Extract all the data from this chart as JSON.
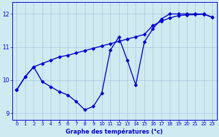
{
  "hours": [
    0,
    1,
    2,
    3,
    4,
    5,
    6,
    7,
    8,
    9,
    10,
    11,
    12,
    13,
    14,
    15,
    16,
    17,
    18,
    19,
    20,
    21,
    22,
    23
  ],
  "temp_curve": [
    9.7,
    10.1,
    10.4,
    9.95,
    9.8,
    9.65,
    9.55,
    9.35,
    9.1,
    9.2,
    9.6,
    10.9,
    11.3,
    10.6,
    9.85,
    11.15,
    11.55,
    11.85,
    12.0,
    12.0,
    12.0,
    12.0,
    12.0,
    11.9
  ],
  "temp_linear": [
    9.7,
    10.1,
    10.4,
    10.5,
    10.6,
    10.7,
    10.75,
    10.82,
    10.89,
    10.96,
    11.03,
    11.1,
    11.17,
    11.24,
    11.31,
    11.38,
    11.65,
    11.78,
    11.88,
    11.95,
    11.97,
    11.98,
    11.99,
    11.9
  ],
  "xlim": [
    -0.5,
    23.5
  ],
  "ylim": [
    8.8,
    12.35
  ],
  "yticks": [
    9,
    10,
    11,
    12
  ],
  "xticks": [
    0,
    1,
    2,
    3,
    4,
    5,
    6,
    7,
    8,
    9,
    10,
    11,
    12,
    13,
    14,
    15,
    16,
    17,
    18,
    19,
    20,
    21,
    22,
    23
  ],
  "xlabel": "Graphe des températures (°c)",
  "line_color": "#0000cc",
  "bg_color": "#d0eaf2",
  "grid_color": "#aaccdd",
  "marker": "D",
  "marker_size": 2.5,
  "linewidth": 1.0
}
